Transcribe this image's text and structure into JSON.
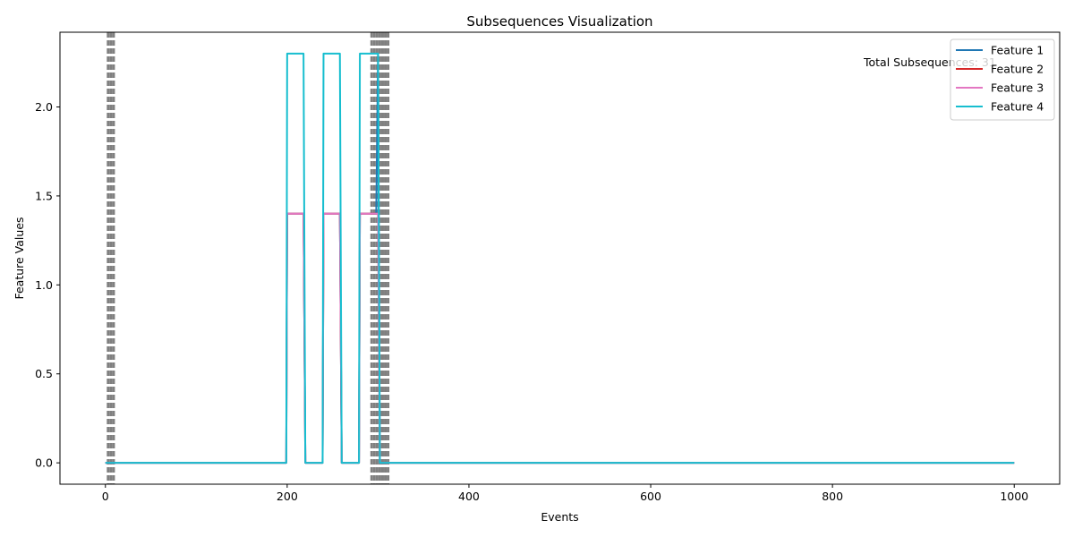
{
  "chart_data": {
    "type": "line",
    "title": "Subsequences Visualization",
    "xlabel": "Events",
    "ylabel": "Feature Values",
    "xlim": [
      -50,
      1050
    ],
    "ylim": [
      -0.12,
      2.42
    ],
    "x_ticks": [
      0,
      200,
      400,
      600,
      800,
      1000
    ],
    "y_ticks": [
      0.0,
      0.5,
      1.0,
      1.5,
      2.0
    ],
    "x_tick_labels": [
      "0",
      "200",
      "400",
      "600",
      "800",
      "1000"
    ],
    "y_tick_labels": [
      "0.0",
      "0.5",
      "1.0",
      "1.5",
      "2.0"
    ],
    "grid": false,
    "legend_position": "upper right",
    "annotation": "Total Subsequences: 31",
    "boundary_color": "#808080",
    "boundary_events": [
      3,
      6,
      9,
      293,
      296,
      299,
      302,
      305,
      308,
      311
    ],
    "series": [
      {
        "name": "Feature 1",
        "color": "#1f77b4",
        "points": [
          [
            0,
            0
          ],
          [
            199,
            0
          ],
          [
            200,
            1.4
          ],
          [
            218,
            1.4
          ],
          [
            220,
            0
          ],
          [
            239,
            0
          ],
          [
            240,
            1.4
          ],
          [
            258,
            1.4
          ],
          [
            260,
            0
          ],
          [
            279,
            0
          ],
          [
            280,
            1.4
          ],
          [
            298,
            1.4
          ],
          [
            300,
            2.3
          ],
          [
            302,
            0
          ],
          [
            1000,
            0
          ]
        ]
      },
      {
        "name": "Feature 2",
        "color": "#d62728",
        "points": [
          [
            0,
            0
          ],
          [
            199,
            0
          ],
          [
            200,
            1.4
          ],
          [
            218,
            1.4
          ],
          [
            220,
            0
          ],
          [
            239,
            0
          ],
          [
            240,
            1.4
          ],
          [
            258,
            1.4
          ],
          [
            260,
            0
          ],
          [
            279,
            0
          ],
          [
            280,
            1.4
          ],
          [
            298,
            1.4
          ],
          [
            300,
            1.4
          ],
          [
            302,
            0
          ],
          [
            1000,
            0
          ]
        ]
      },
      {
        "name": "Feature 3",
        "color": "#e377c2",
        "points": [
          [
            0,
            0
          ],
          [
            199,
            0
          ],
          [
            200,
            1.4
          ],
          [
            218,
            1.4
          ],
          [
            220,
            0
          ],
          [
            239,
            0
          ],
          [
            240,
            1.4
          ],
          [
            258,
            1.4
          ],
          [
            260,
            0
          ],
          [
            279,
            0
          ],
          [
            280,
            1.4
          ],
          [
            298,
            1.4
          ],
          [
            300,
            1.4
          ],
          [
            302,
            0
          ],
          [
            1000,
            0
          ]
        ]
      },
      {
        "name": "Feature 4",
        "color": "#17becf",
        "points": [
          [
            0,
            0
          ],
          [
            199,
            0
          ],
          [
            200,
            2.3
          ],
          [
            218,
            2.3
          ],
          [
            220,
            0
          ],
          [
            239,
            0
          ],
          [
            240,
            2.3
          ],
          [
            258,
            2.3
          ],
          [
            260,
            0
          ],
          [
            279,
            0
          ],
          [
            280,
            2.3
          ],
          [
            298,
            2.3
          ],
          [
            300,
            2.3
          ],
          [
            302,
            0
          ],
          [
            1000,
            0
          ]
        ]
      }
    ]
  }
}
